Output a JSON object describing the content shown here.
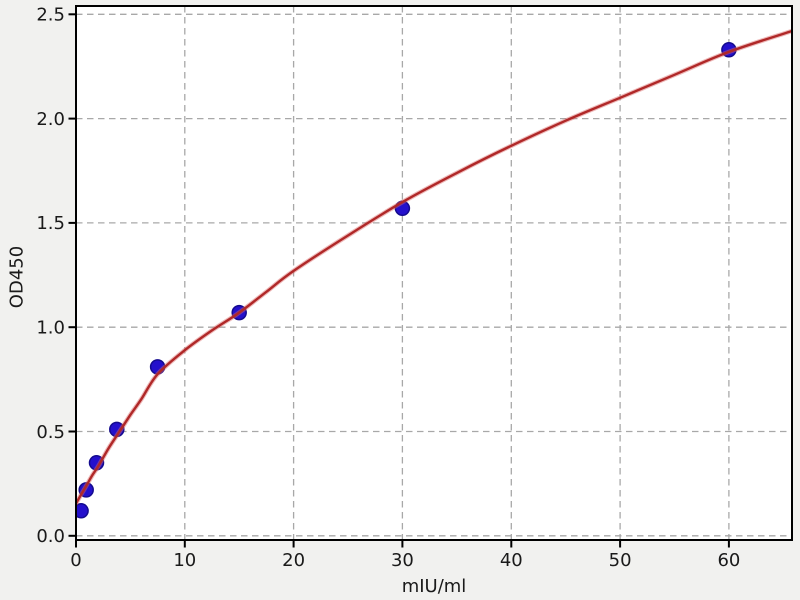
{
  "chart_data": {
    "type": "scatter",
    "title": "",
    "xlabel": "mIU/ml",
    "ylabel": "OD450",
    "xlim": [
      0,
      65.8
    ],
    "ylim": [
      -0.02,
      2.54
    ],
    "grid": "dashed",
    "legend": "none",
    "x_ticks": [
      {
        "value": 0,
        "label": "0"
      },
      {
        "value": 10,
        "label": "10"
      },
      {
        "value": 20,
        "label": "20"
      },
      {
        "value": 30,
        "label": "30"
      },
      {
        "value": 40,
        "label": "40"
      },
      {
        "value": 50,
        "label": "50"
      },
      {
        "value": 60,
        "label": "60"
      }
    ],
    "y_ticks": [
      {
        "value": 0.0,
        "label": "0.0"
      },
      {
        "value": 0.5,
        "label": "0.5"
      },
      {
        "value": 1.0,
        "label": "1.0"
      },
      {
        "value": 1.5,
        "label": "1.5"
      },
      {
        "value": 2.0,
        "label": "2.0"
      },
      {
        "value": 2.5,
        "label": "2.5"
      }
    ],
    "series": [
      {
        "name": "standard-points",
        "type": "scatter",
        "marker": "circle",
        "marker_radius": 7,
        "color": "#2410cc",
        "edge_color": "#140b8f",
        "x": [
          0.47,
          0.94,
          1.88,
          3.75,
          7.5,
          15,
          30,
          60
        ],
        "y": [
          0.12,
          0.22,
          0.35,
          0.51,
          0.81,
          1.07,
          1.57,
          2.33
        ]
      },
      {
        "name": "fit-curve",
        "type": "line",
        "color": "#b02828",
        "halo_color": "rgba(217,102,102,0.45)",
        "x": [
          0,
          0.5,
          1,
          1.5,
          2,
          3,
          4,
          5,
          6,
          7.5,
          10,
          12.5,
          15,
          17.5,
          20,
          25,
          30,
          35,
          40,
          45,
          50,
          55,
          60,
          65.8
        ],
        "y": [
          0.155,
          0.2,
          0.245,
          0.29,
          0.33,
          0.42,
          0.5,
          0.58,
          0.655,
          0.775,
          0.89,
          0.985,
          1.07,
          1.17,
          1.27,
          1.44,
          1.6,
          1.74,
          1.87,
          1.99,
          2.1,
          2.21,
          2.32,
          2.42
        ]
      }
    ],
    "colors": {
      "figure_background": "#f1f1ef",
      "plot_background": "#ffffff",
      "spine": "#000000",
      "grid": "#a8a8a8",
      "tick_text": "#1a1a1a"
    }
  }
}
